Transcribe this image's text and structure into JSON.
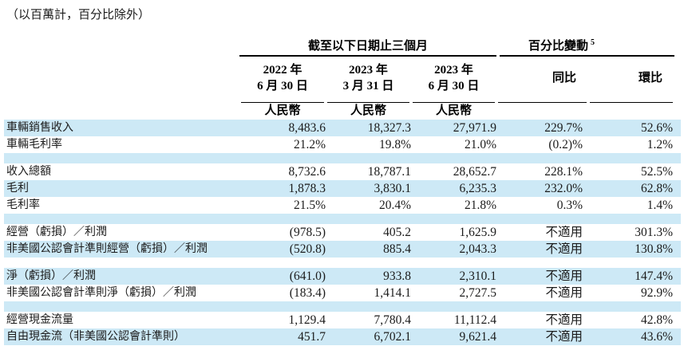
{
  "note": "（以百萬計，百分比除外）",
  "table": {
    "period_header": "截至以下日期止三個月",
    "pct_change_header": "百分比變動",
    "pct_change_footnote": "5",
    "currency_label": "人民幣",
    "na_label": "不適用",
    "columns": [
      {
        "year": "2022 年",
        "date": "6 月 30 日"
      },
      {
        "year": "2023 年",
        "date": "3 月 31 日"
      },
      {
        "year": "2023 年",
        "date": "6 月 30 日"
      },
      {
        "label": "同比"
      },
      {
        "label": "環比"
      }
    ],
    "sections": [
      {
        "rows": [
          {
            "label": "車輛銷售收入",
            "values": [
              "8,483.6",
              "18,327.3",
              "27,971.9",
              "229.7%",
              "52.6%"
            ]
          },
          {
            "label": "車輛毛利率",
            "values": [
              "21.2%",
              "19.8%",
              "21.0%",
              "(0.2)%",
              "1.2%"
            ]
          }
        ]
      },
      {
        "rows": [
          {
            "label": "收入總額",
            "values": [
              "8,732.6",
              "18,787.1",
              "28,652.7",
              "228.1%",
              "52.5%"
            ]
          },
          {
            "label": "毛利",
            "values": [
              "1,878.3",
              "3,830.1",
              "6,235.3",
              "232.0%",
              "62.8%"
            ]
          },
          {
            "label": "毛利率",
            "values": [
              "21.5%",
              "20.4%",
              "21.8%",
              "0.3%",
              "1.4%"
            ]
          }
        ]
      },
      {
        "rows": [
          {
            "label": "經營（虧損）／利潤",
            "values": [
              "(978.5)",
              "405.2",
              "1,625.9",
              "不適用",
              "301.3%"
            ]
          },
          {
            "label": "非美國公認會計準則經營（虧損）／利潤",
            "values": [
              "(520.8)",
              "885.4",
              "2,043.3",
              "不適用",
              "130.8%"
            ]
          }
        ]
      },
      {
        "rows": [
          {
            "label": "淨（虧損）／利潤",
            "values": [
              "(641.0)",
              "933.8",
              "2,310.1",
              "不適用",
              "147.4%"
            ]
          },
          {
            "label": "非美國公認會計準則淨（虧損）／利潤",
            "values": [
              "(183.4)",
              "1,414.1",
              "2,727.5",
              "不適用",
              "92.9%"
            ]
          }
        ]
      },
      {
        "rows": [
          {
            "label": "經營現金流量",
            "values": [
              "1,129.4",
              "7,780.4",
              "11,112.4",
              "不適用",
              "42.8%"
            ]
          },
          {
            "label": "自由現金流（非美國公認會計準則）",
            "values": [
              "451.7",
              "6,702.1",
              "9,621.4",
              "不適用",
              "43.6%"
            ]
          }
        ]
      }
    ]
  },
  "colors": {
    "stripe": "#cde9f6",
    "text": "#1b1b1b",
    "rule": "#000000"
  }
}
